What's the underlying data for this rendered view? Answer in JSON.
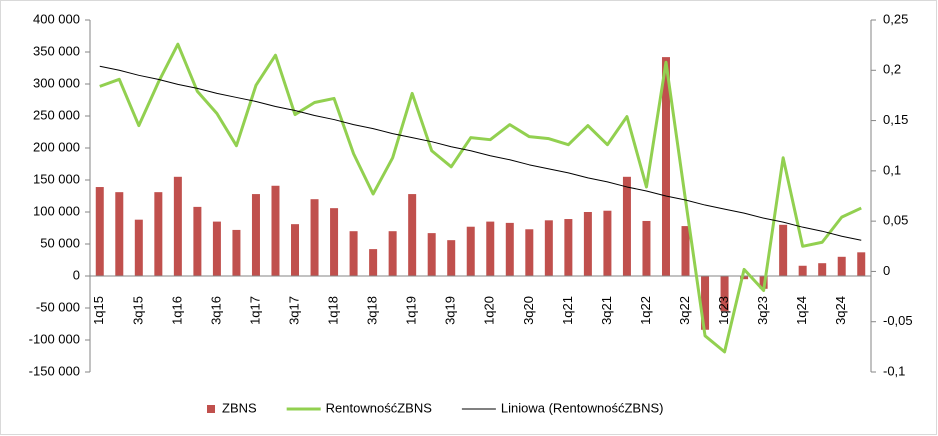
{
  "chart_data": {
    "type": "bar_line",
    "categories": [
      "1q15",
      null,
      "3q15",
      null,
      "1q16",
      null,
      "3q16",
      null,
      "1q17",
      null,
      "3q17",
      null,
      "1q18",
      null,
      "3q18",
      null,
      "1q19",
      null,
      "3q19",
      null,
      "1q20",
      null,
      "3q20",
      null,
      "1q21",
      null,
      "3q21",
      null,
      "1q22",
      null,
      "3q22",
      null,
      "1q23",
      null,
      "3q23",
      null,
      "1q24",
      null,
      "3q24",
      null
    ],
    "series": [
      {
        "name": "ZBNS",
        "type": "bar",
        "color": "#c0504d",
        "values": [
          139000,
          131000,
          88000,
          131000,
          155000,
          108000,
          85000,
          72000,
          128000,
          141000,
          81000,
          120000,
          106000,
          70000,
          42000,
          70000,
          128000,
          67000,
          56000,
          77000,
          85000,
          83000,
          73000,
          87000,
          89000,
          100000,
          102000,
          155000,
          86000,
          342000,
          78000,
          -84000,
          -55000,
          -5000,
          -20000,
          80000,
          16000,
          20000,
          30000,
          37000
        ]
      },
      {
        "name": "RentownośćZBNS",
        "type": "line",
        "axis": "y2",
        "color": "#92d050",
        "values": [
          0.184,
          0.191,
          0.145,
          0.188,
          0.226,
          0.179,
          0.157,
          0.125,
          0.185,
          0.215,
          0.156,
          0.168,
          0.172,
          0.117,
          0.077,
          0.113,
          0.177,
          0.12,
          0.104,
          0.133,
          0.131,
          0.146,
          0.134,
          0.132,
          0.126,
          0.145,
          0.126,
          0.154,
          0.084,
          0.208,
          0.071,
          -0.064,
          -0.08,
          0.002,
          -0.019,
          0.113,
          0.025,
          0.029,
          0.054,
          0.063
        ]
      },
      {
        "name": "Liniowa (RentownośćZBNS)",
        "type": "trend",
        "axis": "y2",
        "color": "#000000",
        "values": [
          0.204,
          0.2,
          0.195,
          0.191,
          0.186,
          0.182,
          0.177,
          0.173,
          0.169,
          0.164,
          0.16,
          0.155,
          0.151,
          0.146,
          0.142,
          0.137,
          0.133,
          0.129,
          0.124,
          0.12,
          0.115,
          0.111,
          0.106,
          0.102,
          0.098,
          0.093,
          0.089,
          0.084,
          0.08,
          0.075,
          0.071,
          0.066,
          0.062,
          0.058,
          0.053,
          0.049,
          0.044,
          0.04,
          0.035,
          0.031
        ]
      }
    ],
    "ylim": [
      -150000,
      400000
    ],
    "yticks": [
      {
        "value": -150000,
        "label": "-150 000"
      },
      {
        "value": -100000,
        "label": "-100 000"
      },
      {
        "value": -50000,
        "label": "-50 000"
      },
      0,
      {
        "value": 50000,
        "label": "50 000"
      },
      {
        "value": 100000,
        "label": "100 000"
      },
      {
        "value": 150000,
        "label": "150 000"
      },
      {
        "value": 200000,
        "label": "200 000"
      },
      {
        "value": 250000,
        "label": "250 000"
      },
      {
        "value": 300000,
        "label": "300 000"
      },
      {
        "value": 350000,
        "label": "350 000"
      },
      {
        "value": 400000,
        "label": "400 000"
      }
    ],
    "y2lim": [
      -0.1,
      0.25
    ],
    "y2ticks": [
      {
        "value": -0.1,
        "label": "-0,1"
      },
      {
        "value": -0.05,
        "label": "-0,05"
      },
      0,
      {
        "value": 0.05,
        "label": "0,05"
      },
      {
        "value": 0.1,
        "label": "0,1"
      },
      {
        "value": 0.15,
        "label": "0,15"
      },
      {
        "value": 0.2,
        "label": "0,2"
      },
      {
        "value": 0.25,
        "label": "0,25"
      }
    ],
    "legend": "bottom"
  }
}
